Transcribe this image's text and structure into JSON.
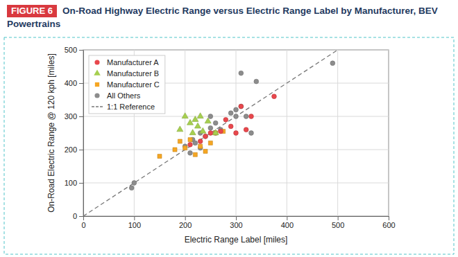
{
  "chart_data": {
    "type": "scatter",
    "figure_label": "FIGURE 6",
    "title": "On-Road Highway Electric Range versus Electric Range Label by Manufacturer, BEV Powertrains",
    "x_label": "Electric Range Label [miles]",
    "y_label": "On-Road Electric Range @ 120 kph [miles]",
    "xlim": [
      0,
      600
    ],
    "xticks": [
      0,
      100,
      200,
      300,
      400,
      500,
      600
    ],
    "ylim": [
      0,
      500
    ],
    "yticks": [
      0,
      100,
      200,
      300,
      400,
      500
    ],
    "grid": true,
    "legend": "top-left",
    "series": [
      {
        "name": "Manufacturer A",
        "color": "#e8474c",
        "marker": "circle",
        "x": [
          375,
          310,
          320,
          300,
          290,
          270,
          250,
          240,
          230,
          210,
          330,
          280
        ],
        "values": [
          360,
          330,
          260,
          250,
          270,
          255,
          250,
          240,
          225,
          215,
          300,
          290
        ]
      },
      {
        "name": "Manufacturer B",
        "color": "#a6cf4f",
        "marker": "triangle",
        "x": [
          200,
          210,
          220,
          230,
          225,
          245,
          260,
          190,
          215,
          235
        ],
        "values": [
          300,
          280,
          290,
          300,
          270,
          285,
          250,
          260,
          250,
          255
        ]
      },
      {
        "name": "Manufacturer C",
        "color": "#f5a623",
        "marker": "square",
        "x": [
          150,
          190,
          210,
          230,
          240,
          250,
          260,
          275,
          220,
          200,
          180
        ],
        "values": [
          180,
          225,
          230,
          210,
          195,
          220,
          250,
          255,
          185,
          205,
          200
        ]
      },
      {
        "name": "All Others",
        "color": "#8c8c8c",
        "marker": "circle",
        "x": [
          100,
          95,
          310,
          490,
          340,
          290,
          300,
          250,
          260,
          230,
          215,
          220,
          200,
          240,
          270,
          310,
          320,
          330,
          210,
          230,
          250,
          260,
          300
        ],
        "values": [
          100,
          85,
          430,
          460,
          405,
          310,
          320,
          300,
          280,
          250,
          230,
          220,
          210,
          240,
          260,
          330,
          300,
          250,
          190,
          205,
          265,
          250,
          300
        ]
      }
    ],
    "reference_line": {
      "name": "1:1 Reference",
      "color": "#777777",
      "line_style": "dashed"
    }
  }
}
